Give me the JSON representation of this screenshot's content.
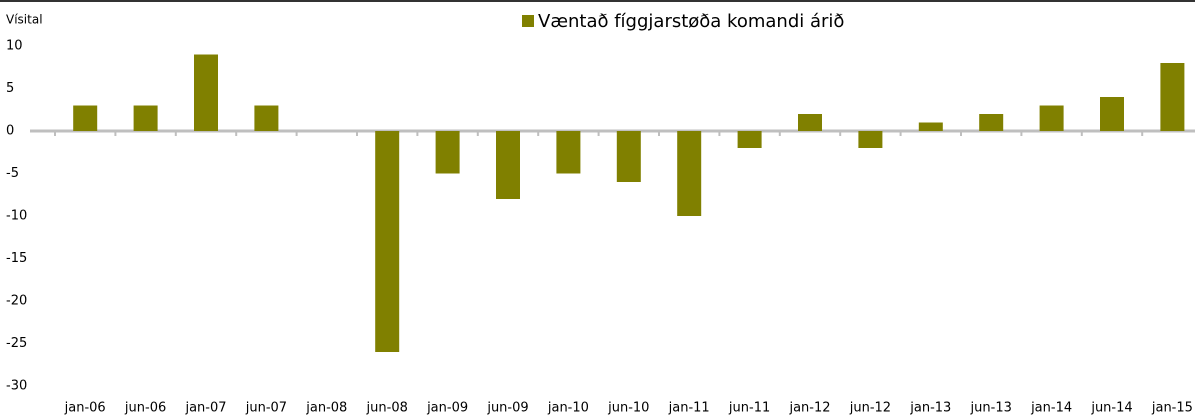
{
  "chart_data": {
    "type": "bar",
    "y_axis_label": "Vísital",
    "legend": "Væntað fíggjarstøða komandi árið",
    "categories": [
      "jan-06",
      "jun-06",
      "jan-07",
      "jun-07",
      "jan-08",
      "jun-08",
      "jan-09",
      "jun-09",
      "jan-10",
      "jun-10",
      "jan-11",
      "jun-11",
      "jan-12",
      "jun-12",
      "jan-13",
      "jun-13",
      "jan-14",
      "jun-14",
      "jan-15"
    ],
    "values": [
      3,
      3,
      9,
      3,
      null,
      -26,
      -5,
      -8,
      -5,
      -6,
      -10,
      -2,
      2,
      -2,
      1,
      2,
      3,
      4,
      8
    ],
    "color": "#808000",
    "ylim": [
      -30,
      10
    ],
    "yticks": [
      -30,
      -25,
      -20,
      -15,
      -10,
      -5,
      0,
      5,
      10
    ],
    "grid": false
  }
}
